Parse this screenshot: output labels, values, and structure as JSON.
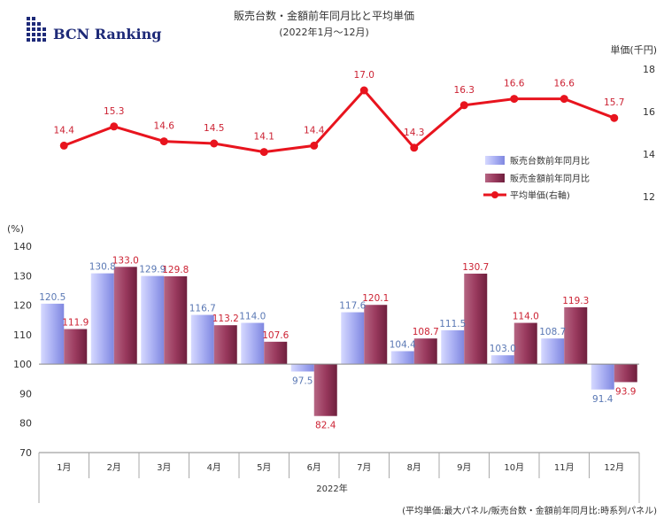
{
  "brand": {
    "logo_text": "BCN Ranking"
  },
  "chart_data": {
    "type": "bar+line",
    "title": "販売台数・金額前年同月比と平均単価",
    "subtitle": "(2022年1月～12月)",
    "categories": [
      "1月",
      "2月",
      "3月",
      "4月",
      "5月",
      "6月",
      "7月",
      "8月",
      "9月",
      "10月",
      "11月",
      "12月"
    ],
    "xlabel": "2022年",
    "series": [
      {
        "name": "販売台数前年同月比",
        "type": "bar",
        "axis": "left",
        "color": "#a9aff2",
        "values": [
          120.5,
          130.8,
          129.9,
          116.7,
          114.0,
          97.5,
          117.6,
          104.4,
          111.5,
          103.0,
          108.7,
          91.4
        ]
      },
      {
        "name": "販売金額前年同月比",
        "type": "bar",
        "axis": "left",
        "color": "#9c3a5e",
        "values": [
          111.9,
          133.0,
          129.8,
          113.2,
          107.6,
          82.4,
          120.1,
          108.7,
          130.7,
          114.0,
          119.3,
          93.9
        ]
      },
      {
        "name": "平均単価(右軸)",
        "type": "line",
        "axis": "right",
        "color": "#e8141e",
        "values": [
          14.4,
          15.3,
          14.6,
          14.5,
          14.1,
          14.4,
          17.0,
          14.3,
          16.3,
          16.6,
          16.6,
          15.7
        ]
      }
    ],
    "y_left": {
      "label": "(%)",
      "ticks": [
        140,
        130,
        120,
        110,
        100,
        90,
        80,
        70
      ],
      "ylim": [
        70,
        140
      ],
      "baseline": 100
    },
    "y_right": {
      "label": "単価(千円)",
      "ticks": [
        18,
        16,
        14,
        12
      ],
      "ylim": [
        12,
        18
      ]
    },
    "legend": {
      "position": "right-middle"
    },
    "footnote": "(平均単価:最大パネル/販売台数・金額前年同月比:時系列パネル)"
  }
}
